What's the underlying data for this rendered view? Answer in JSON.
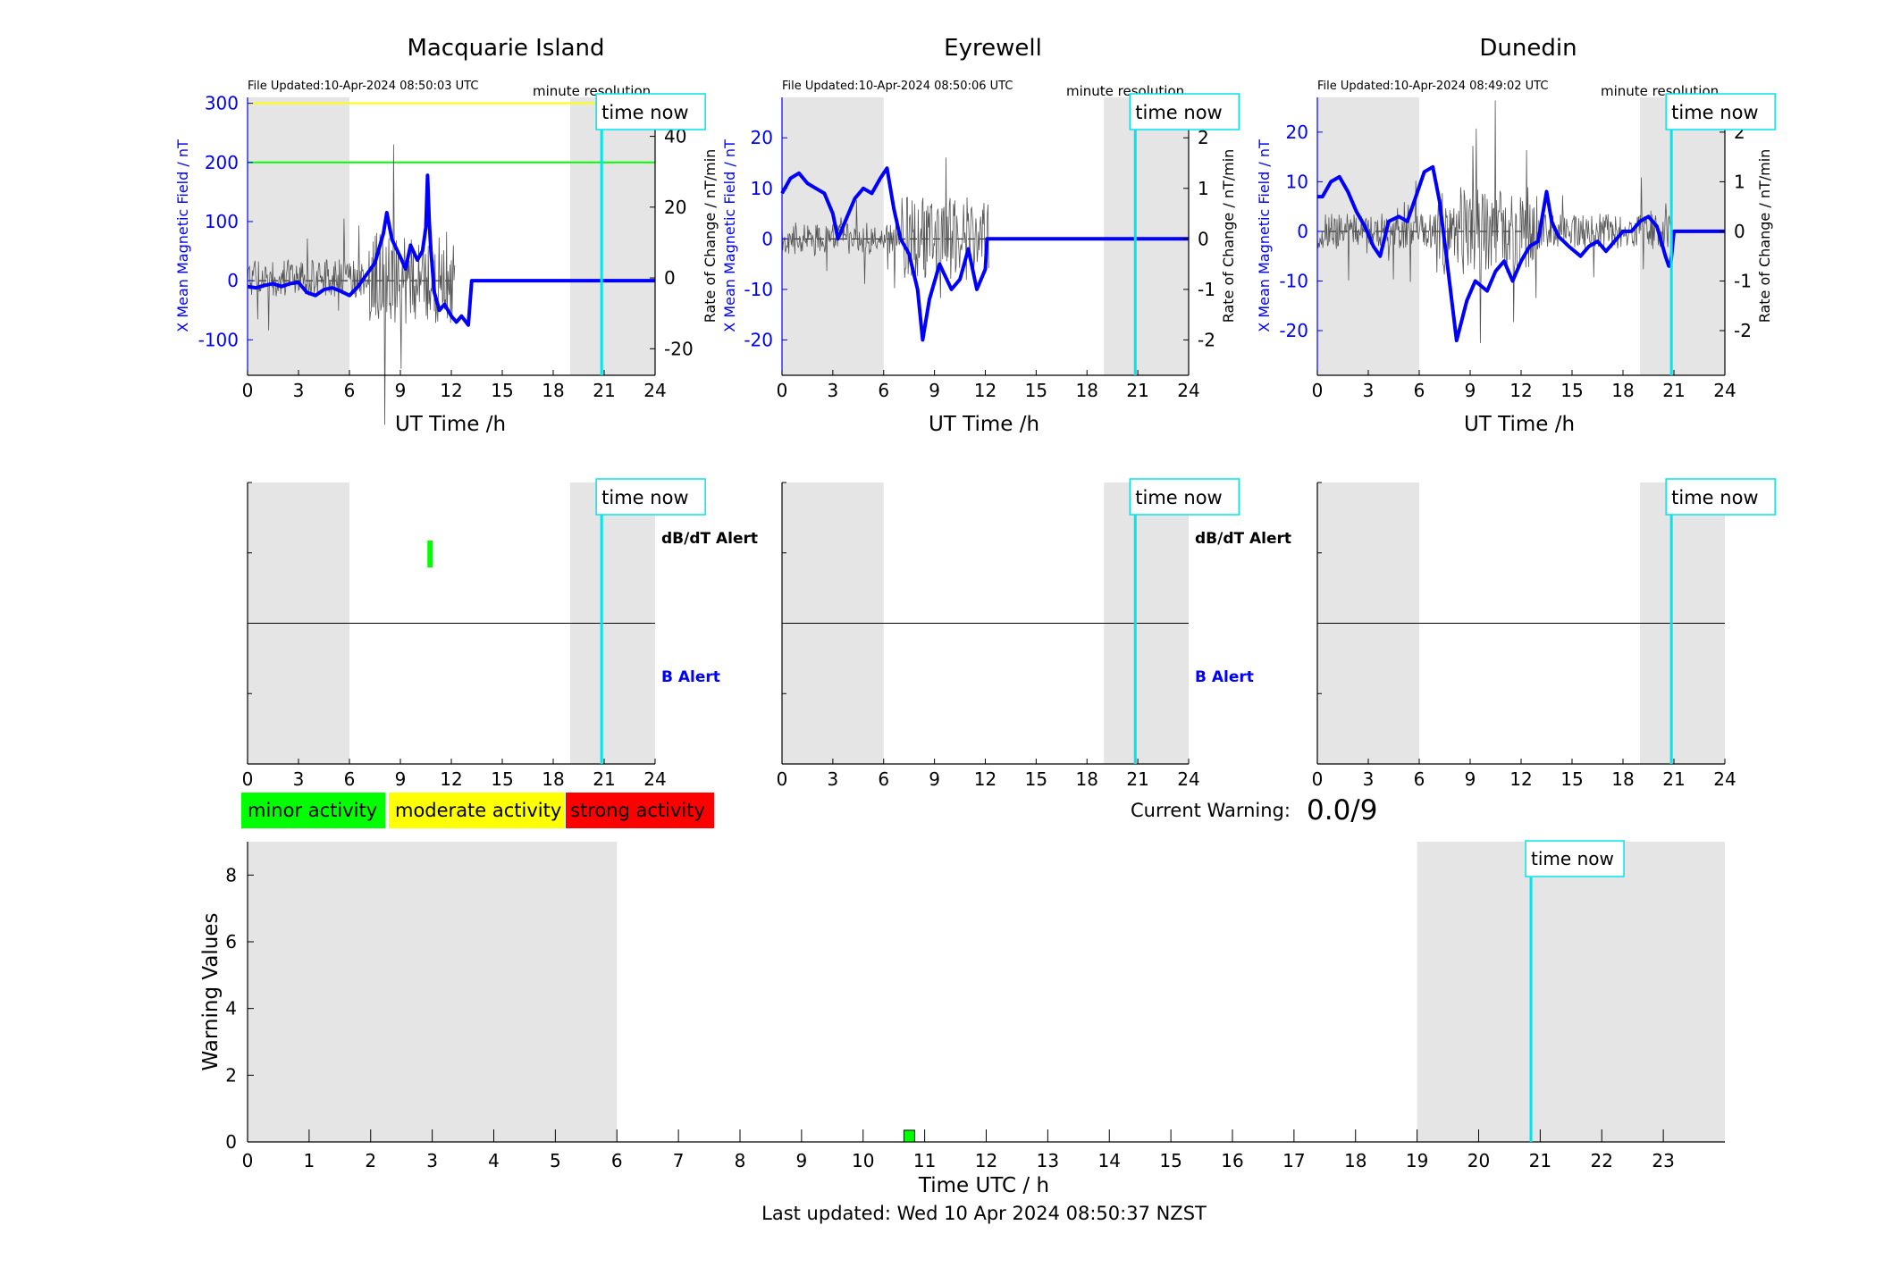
{
  "colors": {
    "night_shade": "#e5e5e5",
    "x_field": "#0000ff",
    "rate": "#000000",
    "time_now": "#00e5ee",
    "minor": "#00ff00",
    "moderate": "#ffff00",
    "strong": "#ff0000"
  },
  "time_now_label": "time now",
  "stations": [
    {
      "title": "Macquarie Island",
      "file_updated": "File Updated:10-Apr-2024 08:50:03 UTC",
      "resolution_label": "minute resolution",
      "xlabel": "UT Time /h",
      "ylabel_left": "X Mean Magnetic Field / nT",
      "ylabel_right": "Rate of Change / nT/min",
      "dbdt_alert_label": "dB/dT Alert",
      "b_alert_label": "B Alert"
    },
    {
      "title": "Eyrewell",
      "file_updated": "File Updated:10-Apr-2024 08:50:06 UTC",
      "resolution_label": "minute resolution",
      "xlabel": "UT Time /h",
      "ylabel_left": "X Mean Magnetic Field / nT",
      "ylabel_right": "Rate of Change / nT/min",
      "dbdt_alert_label": "dB/dT Alert",
      "b_alert_label": "B Alert"
    },
    {
      "title": "Dunedin",
      "file_updated": "File Updated:10-Apr-2024 08:49:02 UTC",
      "resolution_label": "minute resolution",
      "xlabel": "UT Time /h",
      "ylabel_left": "X Mean Magnetic Field / nT",
      "ylabel_right": "Rate of Change / nT/min",
      "dbdt_alert_label": "",
      "b_alert_label": ""
    }
  ],
  "legend": {
    "minor": "minor activity",
    "moderate": "moderate activity",
    "strong": "strong activity"
  },
  "current_warning": {
    "label": "Current Warning:",
    "value": "0.0/9"
  },
  "warning_chart": {
    "ylabel": "Warning Values",
    "xlabel": "Time UTC / h"
  },
  "footer": "Last updated: Wed 10 Apr 2024 08:50:37 NZST",
  "chart_data": [
    {
      "type": "line",
      "title": "Macquarie Island",
      "xlabel": "UT Time /h",
      "ylabel": "X Mean Magnetic Field / nT",
      "ylabel_right": "Rate of Change / nT/min",
      "xlim": [
        0,
        24
      ],
      "ylim": [
        -160,
        310
      ],
      "ylim_right": [
        -27.5,
        51
      ],
      "xticks": [
        0,
        3,
        6,
        9,
        12,
        15,
        18,
        21,
        24
      ],
      "yticks": [
        -100,
        0,
        100,
        200,
        300
      ],
      "yticks_right": [
        -20,
        0,
        20,
        40
      ],
      "night_shading": [
        [
          0,
          6
        ],
        [
          19,
          24
        ]
      ],
      "time_now": 20.85,
      "threshold_lines": [
        {
          "level": "moderate",
          "y": 300
        },
        {
          "level": "minor",
          "y": 200
        }
      ],
      "series": [
        {
          "axis": "left",
          "x": [
            0,
            0.5,
            1,
            1.5,
            2,
            2.5,
            3,
            3.5,
            4,
            4.5,
            5,
            5.5,
            6,
            6.5,
            7,
            7.5,
            8,
            8.2,
            8.5,
            9,
            9.3,
            9.6,
            10,
            10.3,
            10.5,
            10.6,
            10.7,
            10.8,
            11,
            11.3,
            11.6,
            12,
            12.3,
            12.6,
            13,
            13.2,
            14,
            16,
            18,
            20,
            22,
            24
          ],
          "y": [
            -10,
            -12,
            -8,
            -5,
            -10,
            -5,
            -3,
            -20,
            -25,
            -15,
            -12,
            -18,
            -25,
            -10,
            10,
            30,
            80,
            115,
            70,
            40,
            20,
            60,
            35,
            50,
            90,
            178,
            100,
            50,
            -20,
            -50,
            -40,
            -60,
            -70,
            -60,
            -75,
            0,
            0,
            0,
            0,
            0,
            0,
            0
          ]
        }
      ]
    },
    {
      "type": "line",
      "title": "Eyrewell",
      "xlabel": "UT Time /h",
      "ylabel": "X Mean Magnetic Field / nT",
      "ylabel_right": "Rate of Change / nT/min",
      "xlim": [
        0,
        24
      ],
      "ylim": [
        -27,
        28
      ],
      "ylim_right": [
        -2.7,
        2.8
      ],
      "xticks": [
        0,
        3,
        6,
        9,
        12,
        15,
        18,
        21,
        24
      ],
      "yticks": [
        -20,
        -10,
        0,
        10,
        20
      ],
      "yticks_right": [
        -2,
        -1,
        0,
        1,
        2
      ],
      "night_shading": [
        [
          0,
          6
        ],
        [
          19,
          24
        ]
      ],
      "time_now": 20.85,
      "series": [
        {
          "axis": "left",
          "x": [
            0,
            0.5,
            1,
            1.5,
            2,
            2.5,
            3,
            3.3,
            3.8,
            4.3,
            4.8,
            5.3,
            5.8,
            6.2,
            6.6,
            7,
            7.5,
            8,
            8.3,
            8.7,
            9.3,
            10,
            10.5,
            11,
            11.5,
            12,
            12.1,
            14,
            16,
            18,
            20,
            22,
            24
          ],
          "y": [
            9,
            12,
            13,
            11,
            10,
            9,
            5,
            0,
            4,
            8,
            10,
            9,
            12,
            14,
            6,
            0,
            -3,
            -10,
            -20,
            -12,
            -5,
            -10,
            -8,
            -2,
            -10,
            -6,
            0,
            0,
            0,
            0,
            0,
            0,
            0
          ]
        }
      ]
    },
    {
      "type": "line",
      "title": "Dunedin",
      "xlabel": "UT Time /h",
      "ylabel": "X Mean Magnetic Field / nT",
      "ylabel_right": "Rate of Change / nT/min",
      "xlim": [
        0,
        24
      ],
      "ylim": [
        -29,
        27
      ],
      "ylim_right": [
        -2.9,
        2.7
      ],
      "xticks": [
        0,
        3,
        6,
        9,
        12,
        15,
        18,
        21,
        24
      ],
      "yticks": [
        -20,
        -10,
        0,
        10,
        20
      ],
      "yticks_right": [
        -2,
        -1,
        0,
        1,
        2
      ],
      "night_shading": [
        [
          0,
          6
        ],
        [
          19,
          24
        ]
      ],
      "time_now": 20.85,
      "series": [
        {
          "axis": "left",
          "x": [
            0,
            0.3,
            0.8,
            1.3,
            1.8,
            2.3,
            2.8,
            3.3,
            3.7,
            4.2,
            4.8,
            5.3,
            5.8,
            6.3,
            6.8,
            7.2,
            7.6,
            8.2,
            8.8,
            9.3,
            10,
            10.5,
            11,
            11.5,
            12,
            12.5,
            13,
            13.5,
            13.8,
            14.2,
            14.8,
            15.5,
            16,
            16.5,
            17,
            17.5,
            18,
            18.5,
            19,
            19.5,
            20,
            20.5,
            20.7,
            20.8,
            21,
            22,
            24
          ],
          "y": [
            7,
            7,
            10,
            11,
            8,
            4,
            1,
            -3,
            -5,
            2,
            3,
            2,
            7,
            12,
            13,
            6,
            -5,
            -22,
            -14,
            -10,
            -12,
            -8,
            -6,
            -10,
            -6,
            -3,
            -2,
            8,
            2,
            -1,
            -3,
            -5,
            -3,
            -2,
            -4,
            -2,
            0,
            0,
            2,
            3,
            1,
            -5,
            -7,
            -7,
            0,
            0,
            0
          ]
        }
      ]
    },
    {
      "type": "bar",
      "title": "",
      "xlabel": "Time UTC / h",
      "ylabel": "Warning Values",
      "xlim": [
        0,
        24
      ],
      "ylim": [
        0,
        9
      ],
      "xticks": [
        0,
        1,
        2,
        3,
        4,
        5,
        6,
        7,
        8,
        9,
        10,
        11,
        12,
        13,
        14,
        15,
        16,
        17,
        18,
        19,
        20,
        21,
        22,
        23
      ],
      "yticks": [
        0,
        2,
        4,
        6,
        8
      ],
      "night_shading": [
        [
          0,
          6
        ],
        [
          19,
          24
        ]
      ],
      "time_now": 20.85,
      "bars": [
        {
          "x": 10.75,
          "value": 0.35,
          "level": "minor"
        }
      ]
    }
  ],
  "alert_panels": [
    {
      "station": "Macquarie Island",
      "dbdt_alerts": [
        {
          "x": 10.75,
          "level": "minor"
        }
      ],
      "b_alerts": []
    },
    {
      "station": "Eyrewell",
      "dbdt_alerts": [],
      "b_alerts": []
    },
    {
      "station": "Dunedin",
      "dbdt_alerts": [],
      "b_alerts": []
    }
  ]
}
